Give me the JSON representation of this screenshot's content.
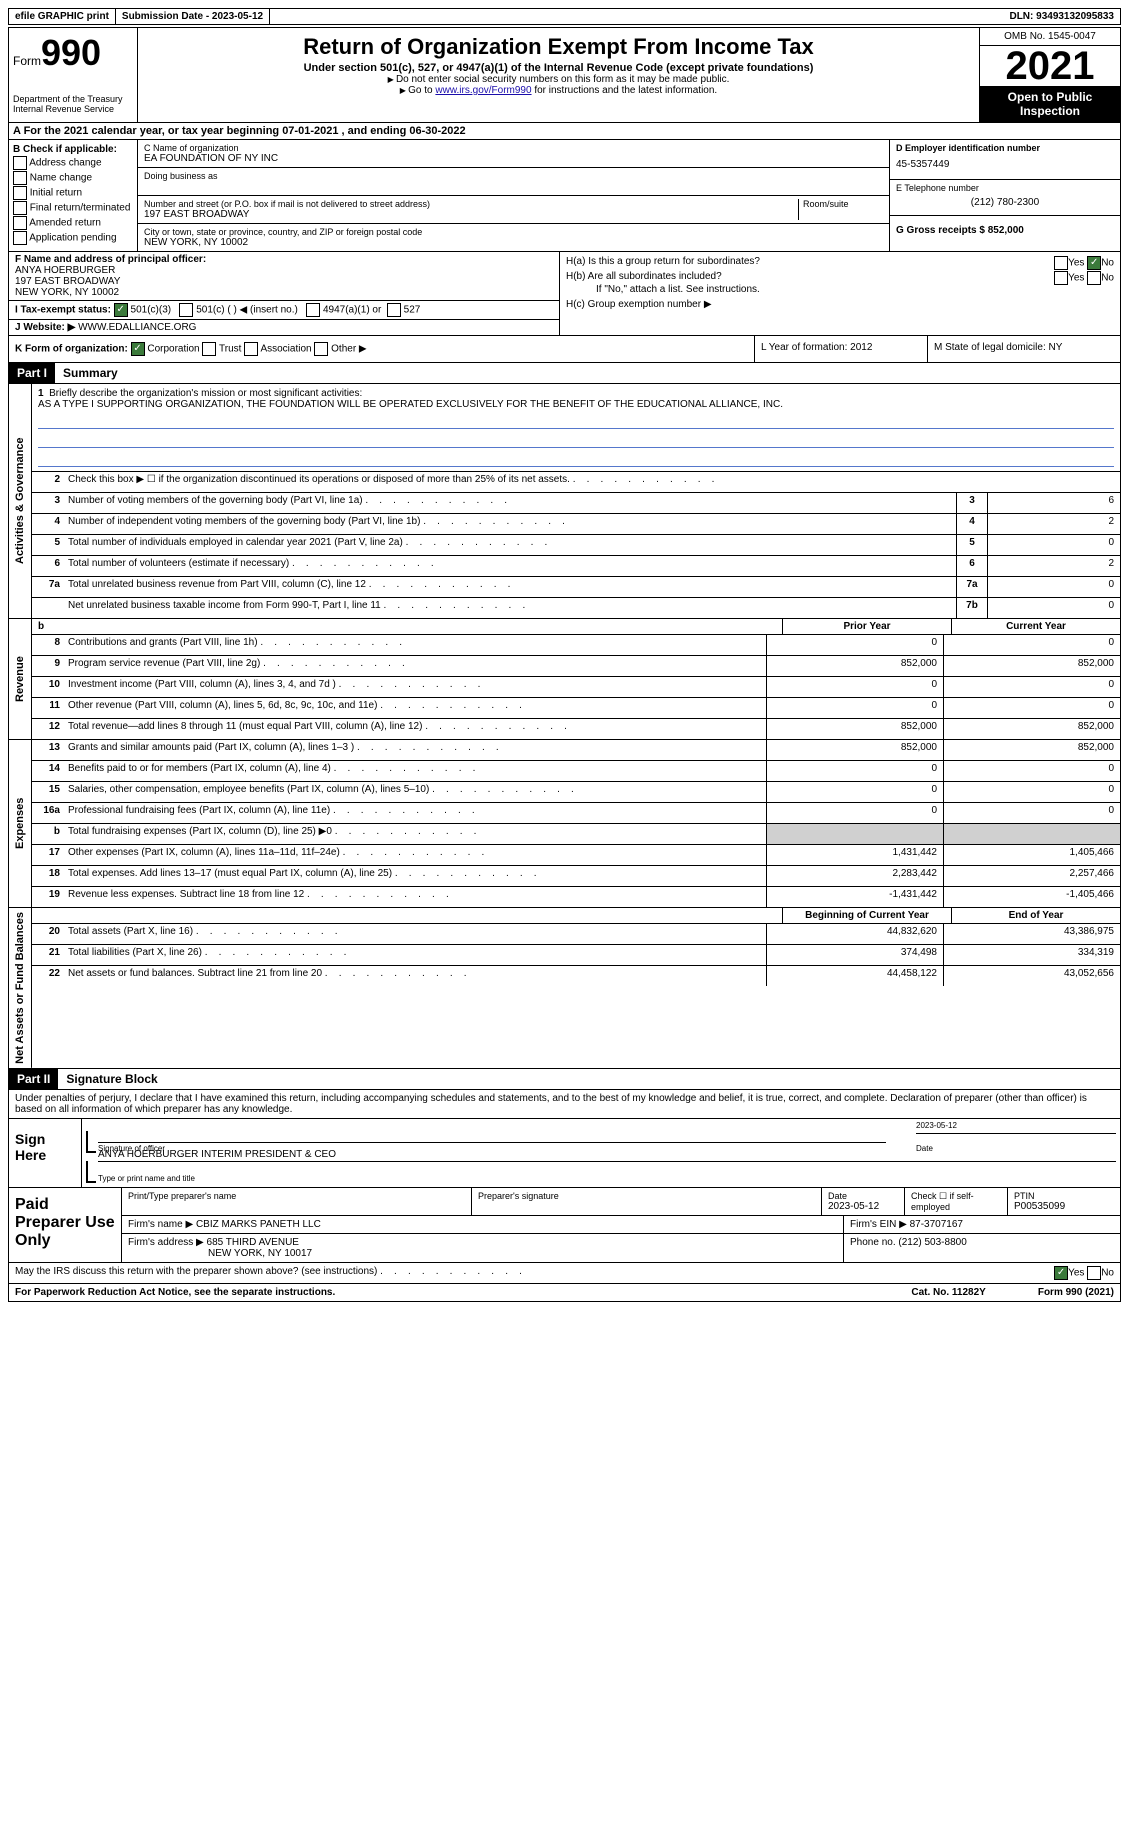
{
  "top_bar": {
    "efile": "efile GRAPHIC print",
    "submission": "Submission Date - 2023-05-12",
    "dln": "DLN: 93493132095833"
  },
  "header": {
    "form_word": "Form",
    "form_num": "990",
    "title": "Return of Organization Exempt From Income Tax",
    "subtitle": "Under section 501(c), 527, or 4947(a)(1) of the Internal Revenue Code (except private foundations)",
    "note1": "Do not enter social security numbers on this form as it may be made public.",
    "note2_pre": "Go to ",
    "note2_link": "www.irs.gov/Form990",
    "note2_post": " for instructions and the latest information.",
    "dept": "Department of the Treasury",
    "irs": "Internal Revenue Service",
    "omb": "OMB No. 1545-0047",
    "year": "2021",
    "inspect": "Open to Public Inspection"
  },
  "section_a": "A For the 2021 calendar year, or tax year beginning 07-01-2021    , and ending 06-30-2022",
  "col_b": {
    "label": "B Check if applicable:",
    "opts": [
      "Address change",
      "Name change",
      "Initial return",
      "Final return/terminated",
      "Amended return",
      "Application pending"
    ]
  },
  "col_c": {
    "name_label": "C Name of organization",
    "name": "EA FOUNDATION OF NY INC",
    "dba_label": "Doing business as",
    "addr_label": "Number and street (or P.O. box if mail is not delivered to street address)",
    "room_label": "Room/suite",
    "addr": "197 EAST BROADWAY",
    "city_label": "City or town, state or province, country, and ZIP or foreign postal code",
    "city": "NEW YORK, NY  10002"
  },
  "col_d": {
    "ein_label": "D Employer identification number",
    "ein": "45-5357449",
    "phone_label": "E Telephone number",
    "phone": "(212) 780-2300",
    "gross_label": "G Gross receipts $ 852,000"
  },
  "row_f": {
    "label": "F  Name and address of principal officer:",
    "name": "ANYA HOERBURGER",
    "addr1": "197 EAST BROADWAY",
    "addr2": "NEW YORK, NY  10002"
  },
  "row_h": {
    "ha": "H(a)  Is this a group return for subordinates?",
    "hb": "H(b)  Are all subordinates included?",
    "hb_note": "If \"No,\" attach a list. See instructions.",
    "hc": "H(c)  Group exemption number ▶",
    "yes": "Yes",
    "no": "No"
  },
  "row_i": {
    "label": "I    Tax-exempt status:",
    "c3": "501(c)(3)",
    "c": "501(c) (  ) ◀ (insert no.)",
    "a1": "4947(a)(1) or",
    "s527": "527"
  },
  "row_j": {
    "label": "J   Website: ▶",
    "site": "WWW.EDALLIANCE.ORG"
  },
  "row_k": {
    "label": "K Form of organization:",
    "corp": "Corporation",
    "trust": "Trust",
    "assoc": "Association",
    "other": "Other ▶",
    "yof_label": "L Year of formation: 2012",
    "state_label": "M State of legal domicile: NY"
  },
  "part1": {
    "label": "Part I",
    "title": "Summary"
  },
  "briefly": {
    "q": "Briefly describe the organization's mission or most significant activities:",
    "text": "AS A TYPE I SUPPORTING ORGANIZATION, THE FOUNDATION WILL BE OPERATED EXCLUSIVELY FOR THE BENEFIT OF THE EDUCATIONAL ALLIANCE, INC."
  },
  "gov_rows": [
    {
      "n": "2",
      "desc": "Check this box ▶ ☐  if the organization discontinued its operations or disposed of more than 25% of its net assets."
    },
    {
      "n": "3",
      "desc": "Number of voting members of the governing body (Part VI, line 1a)",
      "box": "3",
      "val": "6"
    },
    {
      "n": "4",
      "desc": "Number of independent voting members of the governing body (Part VI, line 1b)",
      "box": "4",
      "val": "2"
    },
    {
      "n": "5",
      "desc": "Total number of individuals employed in calendar year 2021 (Part V, line 2a)",
      "box": "5",
      "val": "0"
    },
    {
      "n": "6",
      "desc": "Total number of volunteers (estimate if necessary)",
      "box": "6",
      "val": "2"
    },
    {
      "n": "7a",
      "desc": "Total unrelated business revenue from Part VIII, column (C), line 12",
      "box": "7a",
      "val": "0"
    },
    {
      "n": "",
      "desc": "Net unrelated business taxable income from Form 990-T, Part I, line 11",
      "box": "7b",
      "val": "0"
    }
  ],
  "py_cy_header": {
    "b": "b",
    "py": "Prior Year",
    "cy": "Current Year"
  },
  "revenue_rows": [
    {
      "n": "8",
      "desc": "Contributions and grants (Part VIII, line 1h)",
      "py": "0",
      "cy": "0"
    },
    {
      "n": "9",
      "desc": "Program service revenue (Part VIII, line 2g)",
      "py": "852,000",
      "cy": "852,000"
    },
    {
      "n": "10",
      "desc": "Investment income (Part VIII, column (A), lines 3, 4, and 7d )",
      "py": "0",
      "cy": "0"
    },
    {
      "n": "11",
      "desc": "Other revenue (Part VIII, column (A), lines 5, 6d, 8c, 9c, 10c, and 11e)",
      "py": "0",
      "cy": "0"
    },
    {
      "n": "12",
      "desc": "Total revenue—add lines 8 through 11 (must equal Part VIII, column (A), line 12)",
      "py": "852,000",
      "cy": "852,000"
    }
  ],
  "expense_rows": [
    {
      "n": "13",
      "desc": "Grants and similar amounts paid (Part IX, column (A), lines 1–3 )",
      "py": "852,000",
      "cy": "852,000"
    },
    {
      "n": "14",
      "desc": "Benefits paid to or for members (Part IX, column (A), line 4)",
      "py": "0",
      "cy": "0"
    },
    {
      "n": "15",
      "desc": "Salaries, other compensation, employee benefits (Part IX, column (A), lines 5–10)",
      "py": "0",
      "cy": "0"
    },
    {
      "n": "16a",
      "desc": "Professional fundraising fees (Part IX, column (A), line 11e)",
      "py": "0",
      "cy": "0"
    },
    {
      "n": "b",
      "desc": "Total fundraising expenses (Part IX, column (D), line 25) ▶0",
      "shade": true
    },
    {
      "n": "17",
      "desc": "Other expenses (Part IX, column (A), lines 11a–11d, 11f–24e)",
      "py": "1,431,442",
      "cy": "1,405,466"
    },
    {
      "n": "18",
      "desc": "Total expenses. Add lines 13–17 (must equal Part IX, column (A), line 25)",
      "py": "2,283,442",
      "cy": "2,257,466"
    },
    {
      "n": "19",
      "desc": "Revenue less expenses. Subtract line 18 from line 12",
      "py": "-1,431,442",
      "cy": "-1,405,466"
    }
  ],
  "na_header": {
    "py": "Beginning of Current Year",
    "cy": "End of Year"
  },
  "na_rows": [
    {
      "n": "20",
      "desc": "Total assets (Part X, line 16)",
      "py": "44,832,620",
      "cy": "43,386,975"
    },
    {
      "n": "21",
      "desc": "Total liabilities (Part X, line 26)",
      "py": "374,498",
      "cy": "334,319"
    },
    {
      "n": "22",
      "desc": "Net assets or fund balances. Subtract line 21 from line 20",
      "py": "44,458,122",
      "cy": "43,052,656"
    }
  ],
  "part2": {
    "label": "Part II",
    "title": "Signature Block"
  },
  "sig_decl": "Under penalties of perjury, I declare that I have examined this return, including accompanying schedules and statements, and to the best of my knowledge and belief, it is true, correct, and complete. Declaration of preparer (other than officer) is based on all information of which preparer has any knowledge.",
  "sign": {
    "label": "Sign Here",
    "date": "2023-05-12",
    "sig_label": "Signature of officer",
    "date_label": "Date",
    "name": "ANYA HOERBURGER  INTERIM PRESIDENT & CEO",
    "name_label": "Type or print name and title"
  },
  "paid": {
    "label": "Paid Preparer Use Only",
    "p1": "Print/Type preparer's name",
    "p2": "Preparer's signature",
    "p3_label": "Date",
    "p3": "2023-05-12",
    "p4_label": "Check ☐ if self-employed",
    "p5_label": "PTIN",
    "p5": "P00535099",
    "firm_label": "Firm's name      ▶",
    "firm": "CBIZ MARKS PANETH LLC",
    "ein_label": "Firm's EIN ▶ 87-3707167",
    "addr_label": "Firm's address ▶",
    "addr": "685 THIRD AVENUE",
    "addr2": "NEW YORK, NY  10017",
    "phone_label": "Phone no. (212) 503-8800"
  },
  "footer": {
    "q": "May the IRS discuss this return with the preparer shown above? (see instructions)",
    "yes": "Yes",
    "no": "No",
    "pra": "For Paperwork Reduction Act Notice, see the separate instructions.",
    "cat": "Cat. No. 11282Y",
    "form": "Form 990 (2021)"
  },
  "vtabs": {
    "gov": "Activities & Governance",
    "rev": "Revenue",
    "exp": "Expenses",
    "na": "Net Assets or Fund Balances"
  }
}
